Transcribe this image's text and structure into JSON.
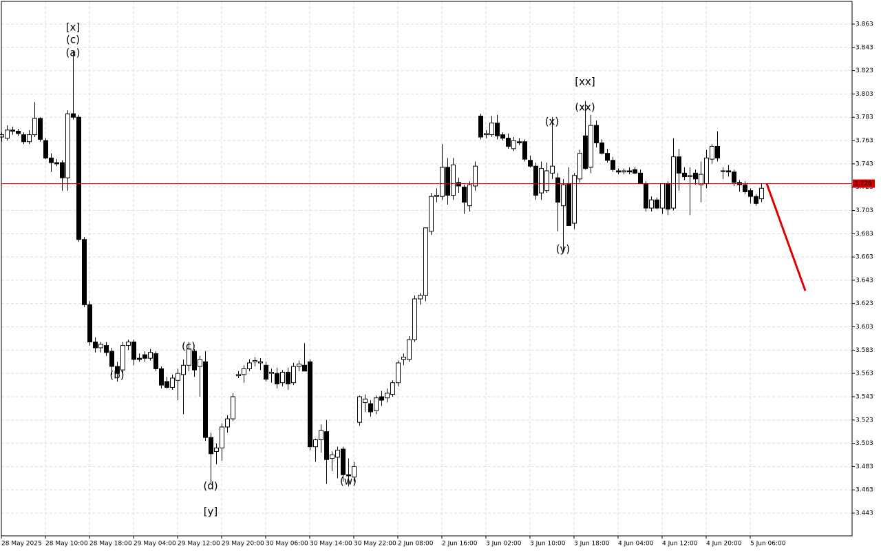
{
  "chart_data": {
    "type": "candlestick",
    "ylim": [
      3.4235,
      3.8825
    ],
    "yticks": [
      3.863,
      3.843,
      3.823,
      3.803,
      3.783,
      3.763,
      3.743,
      3.723,
      3.703,
      3.683,
      3.663,
      3.643,
      3.623,
      3.603,
      3.583,
      3.563,
      3.543,
      3.523,
      3.503,
      3.483,
      3.463,
      3.443
    ],
    "xticks": [
      {
        "value": 0,
        "label": "28 May 2025"
      },
      {
        "value": 8,
        "label": "28 May 10:00"
      },
      {
        "value": 16,
        "label": "28 May 18:00"
      },
      {
        "value": 24,
        "label": "29 May 04:00"
      },
      {
        "value": 32,
        "label": "29 May 12:00"
      },
      {
        "value": 40,
        "label": "29 May 20:00"
      },
      {
        "value": 48,
        "label": "30 May 06:00"
      },
      {
        "value": 56,
        "label": "30 May 14:00"
      },
      {
        "value": 64,
        "label": "30 May 22:00"
      },
      {
        "value": 72,
        "label": "2 Jun 08:00"
      },
      {
        "value": 80,
        "label": "2 Jun 16:00"
      },
      {
        "value": 88,
        "label": "3 Jun 02:00"
      },
      {
        "value": 96,
        "label": "3 Jun 10:00"
      },
      {
        "value": 104,
        "label": "3 Jun 18:00"
      },
      {
        "value": 112,
        "label": "4 Jun 04:00"
      },
      {
        "value": 120,
        "label": "4 Jun 12:00"
      },
      {
        "value": 128,
        "label": "4 Jun 20:00"
      },
      {
        "value": 136,
        "label": "5 Jun 06:00"
      }
    ],
    "grid": true,
    "up_color": "#ffffff",
    "down_color": "#000000",
    "current_price": 3.726,
    "current_price_color": "#d00000",
    "forecast": {
      "start": 3.726,
      "end": 3.634,
      "color": "#e00000"
    },
    "annotations": [
      {
        "text": "[x]",
        "color": "#33bb33"
      },
      {
        "text": "(c)",
        "color": "#2020d0"
      },
      {
        "text": "(a)",
        "color": "#2020d0"
      },
      {
        "text": "(b)",
        "color": "#2020d0"
      },
      {
        "text": "(c)",
        "color": "#2020d0"
      },
      {
        "text": "(d)",
        "color": "#2020d0"
      },
      {
        "text": "[y]",
        "color": "#33bb33"
      },
      {
        "text": "(w)",
        "color": "#2020d0"
      },
      {
        "text": "(x)",
        "color": "#2020d0"
      },
      {
        "text": "[xx]",
        "color": "#33bb33"
      },
      {
        "text": "(xx)",
        "color": "#2020d0"
      },
      {
        "text": "(y)",
        "color": "#2020d0"
      }
    ],
    "ohlc": [
      [
        3.766,
        3.77,
        3.762,
        3.768
      ],
      [
        3.765,
        3.776,
        3.763,
        3.772
      ],
      [
        3.772,
        3.775,
        3.768,
        3.771
      ],
      [
        3.771,
        3.773,
        3.767,
        3.769
      ],
      [
        3.768,
        3.77,
        3.76,
        3.762
      ],
      [
        3.762,
        3.772,
        3.76,
        3.768
      ],
      [
        3.768,
        3.796,
        3.766,
        3.782
      ],
      [
        3.782,
        3.783,
        3.762,
        3.764
      ],
      [
        3.763,
        3.765,
        3.747,
        3.748
      ],
      [
        3.748,
        3.752,
        3.736,
        3.744
      ],
      [
        3.744,
        3.747,
        3.741,
        3.743
      ],
      [
        3.744,
        3.746,
        3.72,
        3.731
      ],
      [
        3.731,
        3.789,
        3.72,
        3.786
      ],
      [
        3.786,
        3.84,
        3.781,
        3.783
      ],
      [
        3.783,
        3.785,
        3.676,
        3.678
      ],
      [
        3.678,
        3.68,
        3.62,
        3.622
      ],
      [
        3.622,
        3.625,
        3.587,
        3.59
      ],
      [
        3.59,
        3.594,
        3.581,
        3.585
      ],
      [
        3.585,
        3.59,
        3.581,
        3.588
      ],
      [
        3.587,
        3.59,
        3.578,
        3.581
      ],
      [
        3.582,
        3.585,
        3.562,
        3.569
      ],
      [
        3.569,
        3.573,
        3.556,
        3.563
      ],
      [
        3.566,
        3.59,
        3.56,
        3.587
      ],
      [
        3.587,
        3.592,
        3.583,
        3.59
      ],
      [
        3.59,
        3.592,
        3.57,
        3.575
      ],
      [
        3.576,
        3.58,
        3.573,
        3.575
      ],
      [
        3.579,
        3.582,
        3.573,
        3.576
      ],
      [
        3.576,
        3.584,
        3.574,
        3.581
      ],
      [
        3.58,
        3.582,
        3.565,
        3.567
      ],
      [
        3.567,
        3.569,
        3.55,
        3.553
      ],
      [
        3.556,
        3.56,
        3.55,
        3.551
      ],
      [
        3.551,
        3.562,
        3.549,
        3.559
      ],
      [
        3.557,
        3.567,
        3.54,
        3.563
      ],
      [
        3.562,
        3.575,
        3.528,
        3.57
      ],
      [
        3.57,
        3.59,
        3.565,
        3.584
      ],
      [
        3.582,
        3.584,
        3.56,
        3.566
      ],
      [
        3.569,
        3.578,
        3.543,
        3.575
      ],
      [
        3.573,
        3.582,
        3.505,
        3.508
      ],
      [
        3.508,
        3.512,
        3.468,
        3.494
      ],
      [
        3.496,
        3.503,
        3.485,
        3.499
      ],
      [
        3.499,
        3.52,
        3.488,
        3.517
      ],
      [
        3.517,
        3.527,
        3.512,
        3.524
      ],
      [
        3.524,
        3.546,
        3.522,
        3.543
      ],
      [
        3.561,
        3.565,
        3.559,
        3.562
      ],
      [
        3.562,
        3.57,
        3.555,
        3.567
      ],
      [
        3.567,
        3.575,
        3.565,
        3.572
      ],
      [
        3.573,
        3.577,
        3.569,
        3.574
      ],
      [
        3.572,
        3.576,
        3.566,
        3.573
      ],
      [
        3.57,
        3.573,
        3.556,
        3.558
      ],
      [
        3.563,
        3.567,
        3.555,
        3.564
      ],
      [
        3.563,
        3.568,
        3.55,
        3.554
      ],
      [
        3.555,
        3.566,
        3.552,
        3.564
      ],
      [
        3.564,
        3.568,
        3.549,
        3.554
      ],
      [
        3.555,
        3.572,
        3.553,
        3.569
      ],
      [
        3.569,
        3.574,
        3.565,
        3.571
      ],
      [
        3.57,
        3.589,
        3.565,
        3.565
      ],
      [
        3.573,
        3.575,
        3.497,
        3.5
      ],
      [
        3.5,
        3.507,
        3.487,
        3.506
      ],
      [
        3.506,
        3.519,
        3.495,
        3.514
      ],
      [
        3.513,
        3.523,
        3.468,
        3.489
      ],
      [
        3.49,
        3.496,
        3.479,
        3.493
      ],
      [
        3.491,
        3.5,
        3.473,
        3.497
      ],
      [
        3.498,
        3.5,
        3.47,
        3.476
      ],
      [
        3.476,
        3.49,
        3.466,
        3.475
      ],
      [
        3.474,
        3.487,
        3.47,
        3.483
      ],
      [
        3.521,
        3.544,
        3.518,
        3.543
      ],
      [
        3.538,
        3.545,
        3.53,
        3.541
      ],
      [
        3.537,
        3.54,
        3.526,
        3.53
      ],
      [
        3.531,
        3.544,
        3.528,
        3.542
      ],
      [
        3.543,
        3.548,
        3.535,
        3.54
      ],
      [
        3.542,
        3.55,
        3.538,
        3.546
      ],
      [
        3.545,
        3.557,
        3.543,
        3.555
      ],
      [
        3.555,
        3.574,
        3.552,
        3.572
      ],
      [
        3.575,
        3.58,
        3.57,
        3.577
      ],
      [
        3.575,
        3.595,
        3.573,
        3.592
      ],
      [
        3.592,
        3.63,
        3.59,
        3.627
      ],
      [
        3.627,
        3.632,
        3.622,
        3.63
      ],
      [
        3.63,
        3.688,
        3.625,
        3.688
      ],
      [
        3.685,
        3.718,
        3.682,
        3.715
      ],
      [
        3.715,
        3.722,
        3.71,
        3.716
      ],
      [
        3.715,
        3.76,
        3.712,
        3.74
      ],
      [
        3.74,
        3.748,
        3.708,
        3.716
      ],
      [
        3.716,
        3.748,
        3.712,
        3.742
      ],
      [
        3.727,
        3.731,
        3.718,
        3.724
      ],
      [
        3.723,
        3.725,
        3.7,
        3.71
      ],
      [
        3.707,
        3.728,
        3.702,
        3.725
      ],
      [
        3.724,
        3.745,
        3.72,
        3.741
      ],
      [
        3.784,
        3.786,
        3.764,
        3.766
      ],
      [
        3.768,
        3.772,
        3.765,
        3.769
      ],
      [
        3.768,
        3.784,
        3.766,
        3.778
      ],
      [
        3.778,
        3.785,
        3.764,
        3.767
      ],
      [
        3.768,
        3.77,
        3.763,
        3.765
      ],
      [
        3.765,
        3.769,
        3.756,
        3.758
      ],
      [
        3.756,
        3.766,
        3.754,
        3.763
      ],
      [
        3.762,
        3.765,
        3.759,
        3.761
      ],
      [
        3.762,
        3.764,
        3.745,
        3.747
      ],
      [
        3.746,
        3.75,
        3.74,
        3.741
      ],
      [
        3.741,
        3.744,
        3.712,
        3.716
      ],
      [
        3.718,
        3.745,
        3.712,
        3.739
      ],
      [
        3.72,
        3.744,
        3.718,
        3.737
      ],
      [
        3.735,
        3.783,
        3.73,
        3.741
      ],
      [
        3.731,
        3.735,
        3.685,
        3.71
      ],
      [
        3.707,
        3.73,
        3.667,
        3.725
      ],
      [
        3.726,
        3.74,
        3.69,
        3.69
      ],
      [
        3.692,
        3.735,
        3.687,
        3.733
      ],
      [
        3.73,
        3.755,
        3.727,
        3.752
      ],
      [
        3.767,
        3.797,
        3.738,
        3.739
      ],
      [
        3.74,
        3.785,
        3.735,
        3.776
      ],
      [
        3.776,
        3.78,
        3.757,
        3.761
      ],
      [
        3.761,
        3.764,
        3.751,
        3.752
      ],
      [
        3.752,
        3.756,
        3.744,
        3.746
      ],
      [
        3.746,
        3.749,
        3.736,
        3.738
      ],
      [
        3.737,
        3.739,
        3.734,
        3.736
      ],
      [
        3.736,
        3.739,
        3.734,
        3.737
      ],
      [
        3.737,
        3.74,
        3.734,
        3.736
      ],
      [
        3.738,
        3.74,
        3.734,
        3.735
      ],
      [
        3.735,
        3.738,
        3.726,
        3.726
      ],
      [
        3.726,
        3.728,
        3.702,
        3.705
      ],
      [
        3.705,
        3.715,
        3.702,
        3.712
      ],
      [
        3.712,
        3.714,
        3.704,
        3.705
      ],
      [
        3.705,
        3.726,
        3.7,
        3.726
      ],
      [
        3.726,
        3.728,
        3.699,
        3.704
      ],
      [
        3.705,
        3.765,
        3.703,
        3.749
      ],
      [
        3.749,
        3.756,
        3.72,
        3.735
      ],
      [
        3.735,
        3.74,
        3.729,
        3.732
      ],
      [
        3.732,
        3.74,
        3.699,
        3.733
      ],
      [
        3.735,
        3.738,
        3.725,
        3.73
      ],
      [
        3.725,
        3.745,
        3.71,
        3.734
      ],
      [
        3.726,
        3.755,
        3.722,
        3.748
      ],
      [
        3.747,
        3.76,
        3.743,
        3.758
      ],
      [
        3.758,
        3.771,
        3.745,
        3.748
      ],
      [
        3.737,
        3.74,
        3.73,
        3.737
      ],
      [
        3.737,
        3.742,
        3.732,
        3.736
      ],
      [
        3.736,
        3.738,
        3.724,
        3.727
      ],
      [
        3.727,
        3.729,
        3.719,
        3.725
      ],
      [
        3.725,
        3.728,
        3.717,
        3.719
      ],
      [
        3.72,
        3.722,
        3.709,
        3.715
      ],
      [
        3.715,
        3.717,
        3.707,
        3.709
      ],
      [
        3.713,
        3.726,
        3.71,
        3.722
      ]
    ]
  }
}
